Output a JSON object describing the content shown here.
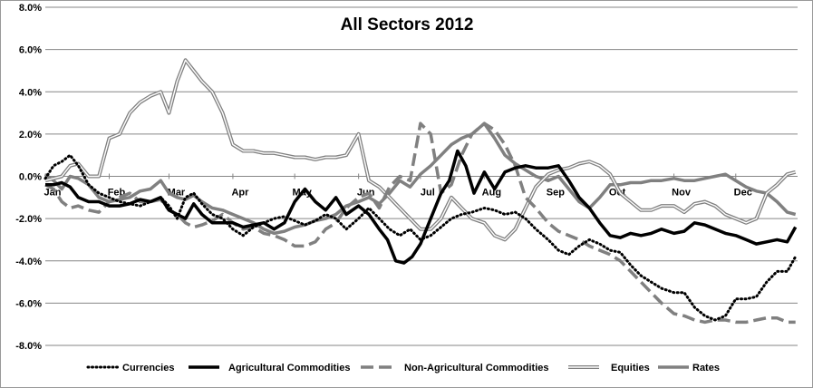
{
  "chart_data": {
    "type": "line",
    "title": "All Sectors 2012",
    "xlabel": "",
    "ylabel": "",
    "ylim": [
      -0.08,
      0.08
    ],
    "xlim": [
      0,
      365
    ],
    "grid": true,
    "legend_position": "bottom",
    "y_ticks": [
      {
        "value": 0.08,
        "label": "8.0%"
      },
      {
        "value": 0.06,
        "label": "6.0%"
      },
      {
        "value": 0.04,
        "label": "4.0%"
      },
      {
        "value": 0.02,
        "label": "2.0%"
      },
      {
        "value": 0.0,
        "label": "0.0%"
      },
      {
        "value": -0.02,
        "label": "-2.0%"
      },
      {
        "value": -0.04,
        "label": "-4.0%"
      },
      {
        "value": -0.06,
        "label": "-6.0%"
      },
      {
        "value": -0.08,
        "label": "-8.0%"
      }
    ],
    "x_ticks": [
      {
        "value": 0,
        "label": "Jan"
      },
      {
        "value": 31,
        "label": "Feb"
      },
      {
        "value": 60,
        "label": "Mar"
      },
      {
        "value": 91,
        "label": "Apr"
      },
      {
        "value": 121,
        "label": "May"
      },
      {
        "value": 152,
        "label": "Jun"
      },
      {
        "value": 182,
        "label": "Jul"
      },
      {
        "value": 213,
        "label": "Aug"
      },
      {
        "value": 244,
        "label": "Sep"
      },
      {
        "value": 274,
        "label": "Oct"
      },
      {
        "value": 305,
        "label": "Nov"
      },
      {
        "value": 335,
        "label": "Dec"
      }
    ],
    "series": [
      {
        "name": "Currencies",
        "style": "dotted",
        "color": "#000000",
        "x": [
          0,
          4,
          8,
          12,
          16,
          21,
          26,
          31,
          36,
          41,
          46,
          51,
          56,
          60,
          64,
          68,
          72,
          76,
          81,
          86,
          91,
          96,
          101,
          106,
          111,
          116,
          121,
          126,
          131,
          136,
          141,
          146,
          152,
          157,
          162,
          167,
          172,
          177,
          182,
          187,
          192,
          197,
          202,
          207,
          213,
          218,
          223,
          228,
          233,
          238,
          244,
          249,
          254,
          259,
          264,
          269,
          274,
          279,
          284,
          289,
          294,
          299,
          305,
          310,
          315,
          320,
          325,
          330,
          335,
          340,
          345,
          350,
          355,
          360,
          364
        ],
        "values": [
          -0.001,
          0.005,
          0.007,
          0.01,
          0.005,
          -0.004,
          -0.008,
          -0.01,
          -0.012,
          -0.013,
          -0.014,
          -0.012,
          -0.01,
          -0.014,
          -0.02,
          -0.01,
          -0.008,
          -0.013,
          -0.018,
          -0.02,
          -0.025,
          -0.028,
          -0.024,
          -0.022,
          -0.02,
          -0.019,
          -0.021,
          -0.023,
          -0.021,
          -0.018,
          -0.02,
          -0.025,
          -0.02,
          -0.015,
          -0.02,
          -0.025,
          -0.028,
          -0.025,
          -0.03,
          -0.028,
          -0.024,
          -0.02,
          -0.018,
          -0.017,
          -0.015,
          -0.016,
          -0.018,
          -0.017,
          -0.02,
          -0.025,
          -0.03,
          -0.035,
          -0.037,
          -0.033,
          -0.03,
          -0.032,
          -0.035,
          -0.036,
          -0.042,
          -0.047,
          -0.05,
          -0.053,
          -0.055,
          -0.055,
          -0.062,
          -0.066,
          -0.068,
          -0.066,
          -0.058,
          -0.058,
          -0.057,
          -0.05,
          -0.045,
          -0.045,
          -0.038
        ]
      },
      {
        "name": "Agricultural Commodities",
        "style": "solid-thick",
        "color": "#000000",
        "x": [
          0,
          4,
          8,
          12,
          16,
          21,
          26,
          31,
          36,
          41,
          46,
          51,
          56,
          60,
          64,
          68,
          72,
          76,
          81,
          86,
          91,
          96,
          101,
          106,
          111,
          116,
          121,
          126,
          131,
          136,
          141,
          146,
          152,
          157,
          162,
          166,
          170,
          174,
          178,
          182,
          187,
          192,
          196,
          200,
          204,
          208,
          213,
          218,
          223,
          228,
          233,
          238,
          244,
          249,
          254,
          259,
          264,
          269,
          274,
          279,
          284,
          289,
          294,
          299,
          305,
          310,
          315,
          320,
          325,
          330,
          335,
          340,
          345,
          350,
          355,
          360,
          364
        ],
        "values": [
          -0.004,
          -0.004,
          -0.003,
          -0.005,
          -0.01,
          -0.012,
          -0.012,
          -0.014,
          -0.014,
          -0.013,
          -0.011,
          -0.012,
          -0.01,
          -0.016,
          -0.018,
          -0.02,
          -0.013,
          -0.018,
          -0.022,
          -0.022,
          -0.022,
          -0.024,
          -0.023,
          -0.022,
          -0.025,
          -0.022,
          -0.012,
          -0.006,
          -0.012,
          -0.016,
          -0.01,
          -0.018,
          -0.014,
          -0.018,
          -0.025,
          -0.03,
          -0.04,
          -0.041,
          -0.038,
          -0.032,
          -0.02,
          -0.008,
          -0.002,
          0.012,
          0.005,
          -0.008,
          0.002,
          -0.006,
          0.002,
          0.004,
          0.005,
          0.004,
          0.004,
          0.005,
          -0.002,
          -0.01,
          -0.015,
          -0.022,
          -0.028,
          -0.029,
          -0.027,
          -0.028,
          -0.027,
          -0.025,
          -0.027,
          -0.026,
          -0.022,
          -0.023,
          -0.025,
          -0.027,
          -0.028,
          -0.03,
          -0.032,
          -0.031,
          -0.03,
          -0.031,
          -0.024
        ]
      },
      {
        "name": "Non-Agricultural Commodities",
        "style": "dashed-thick",
        "color": "#808080",
        "x": [
          0,
          4,
          8,
          12,
          16,
          21,
          26,
          31,
          36,
          41,
          46,
          51,
          56,
          60,
          64,
          68,
          72,
          76,
          81,
          86,
          91,
          96,
          101,
          106,
          111,
          116,
          121,
          126,
          131,
          136,
          141,
          146,
          152,
          157,
          162,
          167,
          172,
          177,
          182,
          187,
          192,
          197,
          202,
          207,
          213,
          218,
          223,
          228,
          233,
          238,
          244,
          249,
          254,
          259,
          264,
          269,
          274,
          279,
          284,
          289,
          294,
          299,
          305,
          310,
          315,
          320,
          325,
          330,
          335,
          340,
          345,
          350,
          355,
          360,
          364
        ],
        "values": [
          -0.004,
          -0.006,
          -0.012,
          -0.015,
          -0.014,
          -0.016,
          -0.017,
          -0.012,
          -0.01,
          -0.008,
          -0.012,
          -0.012,
          -0.011,
          -0.016,
          -0.018,
          -0.022,
          -0.024,
          -0.023,
          -0.021,
          -0.018,
          -0.022,
          -0.025,
          -0.024,
          -0.027,
          -0.028,
          -0.03,
          -0.033,
          -0.033,
          -0.031,
          -0.025,
          -0.022,
          -0.015,
          -0.01,
          -0.008,
          -0.015,
          -0.005,
          0.0,
          -0.002,
          0.025,
          0.02,
          -0.008,
          -0.004,
          0.01,
          0.02,
          0.025,
          0.022,
          0.015,
          0.005,
          -0.01,
          -0.015,
          -0.022,
          -0.026,
          -0.028,
          -0.03,
          -0.033,
          -0.035,
          -0.037,
          -0.04,
          -0.045,
          -0.05,
          -0.055,
          -0.06,
          -0.065,
          -0.066,
          -0.068,
          -0.069,
          -0.068,
          -0.068,
          -0.069,
          -0.069,
          -0.068,
          -0.067,
          -0.067,
          -0.069,
          -0.069
        ]
      },
      {
        "name": "Equities",
        "style": "double",
        "color": "#808080",
        "x": [
          0,
          4,
          8,
          12,
          16,
          21,
          26,
          31,
          36,
          41,
          46,
          51,
          56,
          60,
          64,
          68,
          72,
          76,
          81,
          86,
          91,
          96,
          101,
          106,
          111,
          116,
          121,
          126,
          131,
          136,
          141,
          146,
          152,
          157,
          162,
          167,
          172,
          177,
          182,
          187,
          192,
          197,
          202,
          207,
          213,
          218,
          223,
          228,
          233,
          238,
          244,
          249,
          254,
          259,
          264,
          269,
          274,
          279,
          284,
          289,
          294,
          299,
          305,
          310,
          315,
          320,
          325,
          330,
          335,
          340,
          345,
          350,
          355,
          360,
          364
        ],
        "values": [
          -0.002,
          -0.001,
          0.0,
          0.005,
          0.006,
          0.0,
          0.0,
          0.018,
          0.02,
          0.03,
          0.035,
          0.038,
          0.04,
          0.03,
          0.045,
          0.055,
          0.05,
          0.045,
          0.04,
          0.03,
          0.015,
          0.012,
          0.012,
          0.011,
          0.011,
          0.01,
          0.009,
          0.009,
          0.008,
          0.009,
          0.009,
          0.01,
          0.02,
          -0.002,
          -0.005,
          -0.01,
          -0.015,
          -0.02,
          -0.025,
          -0.025,
          -0.02,
          -0.01,
          -0.015,
          -0.02,
          -0.022,
          -0.028,
          -0.03,
          -0.025,
          -0.015,
          -0.005,
          0.001,
          0.003,
          0.004,
          0.006,
          0.007,
          0.005,
          0.001,
          -0.008,
          -0.012,
          -0.016,
          -0.016,
          -0.014,
          -0.014,
          -0.017,
          -0.013,
          -0.012,
          -0.014,
          -0.018,
          -0.02,
          -0.022,
          -0.02,
          -0.008,
          -0.004,
          0.001,
          0.002
        ]
      },
      {
        "name": "Rates",
        "style": "solid-thick",
        "color": "#808080",
        "x": [
          0,
          4,
          8,
          12,
          16,
          21,
          26,
          31,
          36,
          41,
          46,
          51,
          56,
          60,
          64,
          68,
          72,
          76,
          81,
          86,
          91,
          96,
          101,
          106,
          111,
          116,
          121,
          126,
          131,
          136,
          141,
          146,
          152,
          157,
          162,
          167,
          172,
          177,
          182,
          187,
          192,
          197,
          202,
          207,
          213,
          218,
          223,
          228,
          233,
          238,
          244,
          249,
          254,
          259,
          264,
          269,
          274,
          279,
          284,
          289,
          294,
          299,
          305,
          310,
          315,
          320,
          325,
          330,
          335,
          340,
          345,
          350,
          355,
          360,
          364
        ],
        "values": [
          0.001,
          -0.002,
          -0.006,
          0.0,
          -0.001,
          -0.004,
          -0.01,
          -0.012,
          -0.011,
          -0.01,
          -0.007,
          -0.006,
          -0.002,
          -0.008,
          -0.01,
          -0.011,
          -0.009,
          -0.012,
          -0.015,
          -0.016,
          -0.018,
          -0.02,
          -0.022,
          -0.025,
          -0.027,
          -0.026,
          -0.024,
          -0.023,
          -0.021,
          -0.02,
          -0.018,
          -0.014,
          -0.012,
          -0.01,
          -0.013,
          -0.008,
          -0.002,
          -0.005,
          0.001,
          0.005,
          0.01,
          0.015,
          0.018,
          0.02,
          0.025,
          0.018,
          0.01,
          0.006,
          0.003,
          0.0,
          -0.002,
          0.0,
          -0.006,
          -0.012,
          -0.015,
          -0.01,
          -0.004,
          -0.004,
          -0.003,
          -0.003,
          -0.002,
          -0.002,
          -0.001,
          -0.002,
          -0.002,
          -0.001,
          0.0,
          0.001,
          -0.002,
          -0.005,
          -0.007,
          -0.008,
          -0.012,
          -0.017,
          -0.018
        ]
      }
    ]
  }
}
